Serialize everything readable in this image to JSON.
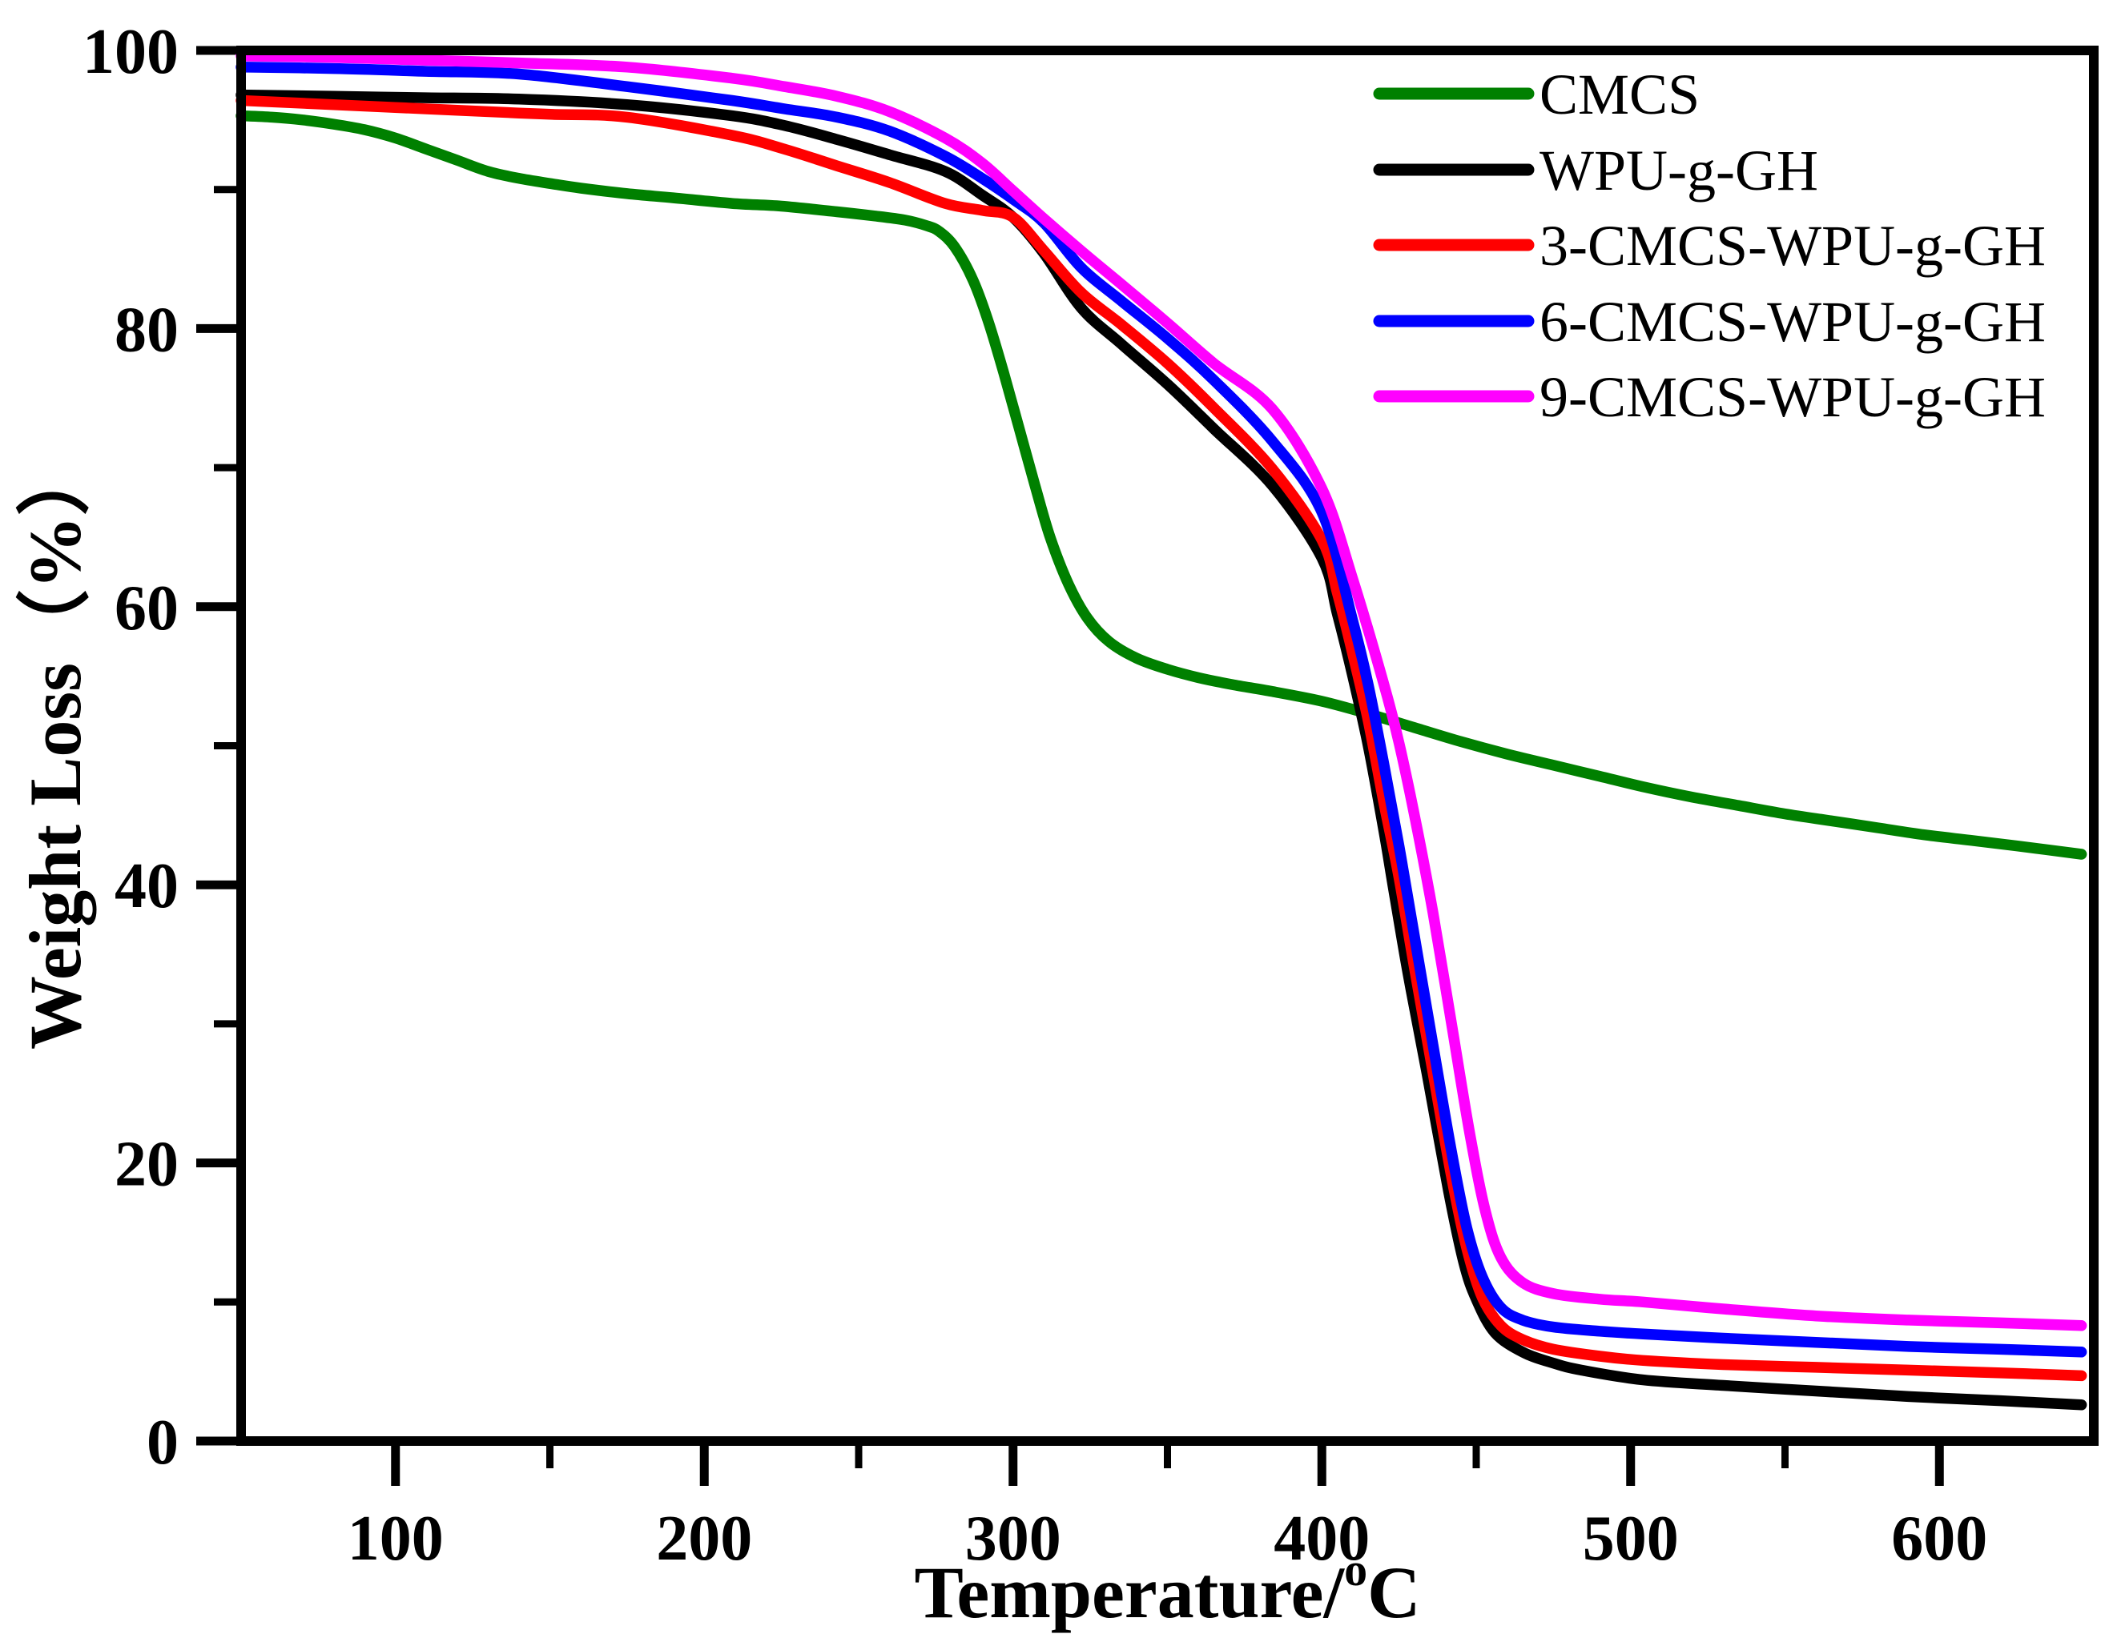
{
  "chart_data": {
    "type": "line",
    "title": "",
    "xlabel": "Temperature/°C",
    "xlabel_parts": {
      "main": "Temperature/",
      "sup": "o",
      "unit": "C"
    },
    "ylabel": "Weight Loss（%）",
    "xlim": [
      50,
      650
    ],
    "ylim": [
      0,
      100
    ],
    "x_major_ticks": [
      100,
      200,
      300,
      400,
      500,
      600
    ],
    "x_minor_ticks": [
      150,
      250,
      350,
      450,
      550
    ],
    "y_major_ticks": [
      0,
      20,
      40,
      60,
      80,
      100
    ],
    "y_minor_ticks": [
      10,
      30,
      50,
      70,
      90
    ],
    "grid": false,
    "legend_position": "top-right-inside",
    "frame_color": "#000000",
    "background_color": "#ffffff",
    "series": [
      {
        "name": "CMCS",
        "color": "#008000",
        "points": [
          [
            50,
            95.3
          ],
          [
            60,
            95.2
          ],
          [
            70,
            95.0
          ],
          [
            80,
            94.7
          ],
          [
            90,
            94.3
          ],
          [
            100,
            93.7
          ],
          [
            110,
            92.9
          ],
          [
            120,
            92.1
          ],
          [
            130,
            91.3
          ],
          [
            140,
            90.8
          ],
          [
            151,
            90.4
          ],
          [
            160,
            90.1
          ],
          [
            175,
            89.7
          ],
          [
            190,
            89.4
          ],
          [
            209,
            89.0
          ],
          [
            225,
            88.8
          ],
          [
            243,
            88.4
          ],
          [
            255,
            88.1
          ],
          [
            265,
            87.8
          ],
          [
            272,
            87.4
          ],
          [
            276,
            87.0
          ],
          [
            281,
            85.9
          ],
          [
            287,
            83.5
          ],
          [
            292,
            80.5
          ],
          [
            297,
            76.8
          ],
          [
            302,
            72.8
          ],
          [
            307,
            68.8
          ],
          [
            312,
            65.0
          ],
          [
            318,
            61.6
          ],
          [
            324,
            59.2
          ],
          [
            331,
            57.5
          ],
          [
            340,
            56.3
          ],
          [
            350,
            55.5
          ],
          [
            360,
            54.9
          ],
          [
            371,
            54.4
          ],
          [
            384,
            53.9
          ],
          [
            400,
            53.2
          ],
          [
            415,
            52.3
          ],
          [
            430,
            51.3
          ],
          [
            445,
            50.3
          ],
          [
            460,
            49.4
          ],
          [
            475,
            48.6
          ],
          [
            490,
            47.8
          ],
          [
            505,
            47.0
          ],
          [
            520,
            46.3
          ],
          [
            535,
            45.7
          ],
          [
            550,
            45.1
          ],
          [
            565,
            44.6
          ],
          [
            580,
            44.1
          ],
          [
            595,
            43.6
          ],
          [
            610,
            43.2
          ],
          [
            625,
            42.8
          ],
          [
            646,
            42.2
          ]
        ]
      },
      {
        "name": "WPU-g-GH",
        "color": "#000000",
        "points": [
          [
            50,
            96.8
          ],
          [
            80,
            96.7
          ],
          [
            110,
            96.6
          ],
          [
            140,
            96.5
          ],
          [
            175,
            96.1
          ],
          [
            209,
            95.3
          ],
          [
            226,
            94.6
          ],
          [
            243,
            93.6
          ],
          [
            260,
            92.5
          ],
          [
            278,
            91.3
          ],
          [
            290,
            89.6
          ],
          [
            300,
            88.0
          ],
          [
            310,
            85.4
          ],
          [
            322,
            81.5
          ],
          [
            335,
            78.9
          ],
          [
            350,
            76.0
          ],
          [
            365,
            72.8
          ],
          [
            384,
            68.7
          ],
          [
            400,
            63.5
          ],
          [
            405,
            59.5
          ],
          [
            410,
            55.0
          ],
          [
            415,
            50.0
          ],
          [
            420,
            44.0
          ],
          [
            423,
            40.0
          ],
          [
            428,
            33.5
          ],
          [
            434,
            26.5
          ],
          [
            441,
            18.0
          ],
          [
            446,
            12.8
          ],
          [
            450,
            10.2
          ],
          [
            456,
            7.8
          ],
          [
            465,
            6.4
          ],
          [
            475,
            5.6
          ],
          [
            484,
            5.1
          ],
          [
            504,
            4.4
          ],
          [
            530,
            4.0
          ],
          [
            560,
            3.6
          ],
          [
            590,
            3.2
          ],
          [
            620,
            2.9
          ],
          [
            646,
            2.6
          ]
        ]
      },
      {
        "name": "3-CMCS-WPU-g-GH",
        "color": "#ff0000",
        "points": [
          [
            50,
            96.4
          ],
          [
            80,
            96.1
          ],
          [
            110,
            95.8
          ],
          [
            140,
            95.5
          ],
          [
            151,
            95.4
          ],
          [
            175,
            95.2
          ],
          [
            209,
            93.9
          ],
          [
            226,
            92.9
          ],
          [
            243,
            91.7
          ],
          [
            260,
            90.5
          ],
          [
            278,
            89.0
          ],
          [
            290,
            88.5
          ],
          [
            300,
            88.0
          ],
          [
            310,
            85.6
          ],
          [
            322,
            82.6
          ],
          [
            335,
            80.3
          ],
          [
            350,
            77.5
          ],
          [
            365,
            74.3
          ],
          [
            384,
            69.9
          ],
          [
            400,
            64.8
          ],
          [
            405,
            61.0
          ],
          [
            410,
            56.6
          ],
          [
            415,
            51.8
          ],
          [
            420,
            46.0
          ],
          [
            425,
            40.5
          ],
          [
            430,
            34.0
          ],
          [
            436,
            26.5
          ],
          [
            442,
            19.0
          ],
          [
            447,
            13.8
          ],
          [
            452,
            10.3
          ],
          [
            458,
            8.3
          ],
          [
            465,
            7.3
          ],
          [
            475,
            6.6
          ],
          [
            490,
            6.1
          ],
          [
            504,
            5.8
          ],
          [
            530,
            5.5
          ],
          [
            560,
            5.3
          ],
          [
            590,
            5.1
          ],
          [
            620,
            4.9
          ],
          [
            646,
            4.7
          ]
        ]
      },
      {
        "name": "6-CMCS-WPU-g-GH",
        "color": "#0000ff",
        "points": [
          [
            50,
            98.8
          ],
          [
            80,
            98.7
          ],
          [
            110,
            98.5
          ],
          [
            140,
            98.3
          ],
          [
            175,
            97.4
          ],
          [
            209,
            96.4
          ],
          [
            226,
            95.8
          ],
          [
            243,
            95.2
          ],
          [
            260,
            94.2
          ],
          [
            278,
            92.4
          ],
          [
            290,
            90.8
          ],
          [
            300,
            89.3
          ],
          [
            310,
            87.6
          ],
          [
            322,
            84.4
          ],
          [
            335,
            82.0
          ],
          [
            350,
            79.3
          ],
          [
            365,
            76.3
          ],
          [
            384,
            71.9
          ],
          [
            400,
            66.8
          ],
          [
            410,
            59.0
          ],
          [
            415,
            54.4
          ],
          [
            420,
            48.8
          ],
          [
            425,
            42.8
          ],
          [
            430,
            36.3
          ],
          [
            436,
            28.5
          ],
          [
            442,
            20.8
          ],
          [
            447,
            15.3
          ],
          [
            452,
            11.8
          ],
          [
            458,
            9.6
          ],
          [
            465,
            8.7
          ],
          [
            475,
            8.2
          ],
          [
            490,
            7.9
          ],
          [
            504,
            7.7
          ],
          [
            530,
            7.4
          ],
          [
            560,
            7.1
          ],
          [
            590,
            6.8
          ],
          [
            620,
            6.6
          ],
          [
            646,
            6.4
          ]
        ]
      },
      {
        "name": "9-CMCS-WPU-g-GH",
        "color": "#ff00ff",
        "points": [
          [
            50,
            99.6
          ],
          [
            80,
            99.5
          ],
          [
            110,
            99.3
          ],
          [
            140,
            99.1
          ],
          [
            175,
            98.8
          ],
          [
            209,
            98.0
          ],
          [
            226,
            97.4
          ],
          [
            243,
            96.7
          ],
          [
            260,
            95.6
          ],
          [
            278,
            93.7
          ],
          [
            290,
            91.9
          ],
          [
            300,
            89.9
          ],
          [
            310,
            87.9
          ],
          [
            322,
            85.6
          ],
          [
            335,
            83.2
          ],
          [
            350,
            80.4
          ],
          [
            365,
            77.5
          ],
          [
            384,
            74.2
          ],
          [
            400,
            68.5
          ],
          [
            410,
            62.0
          ],
          [
            420,
            54.5
          ],
          [
            425,
            50.2
          ],
          [
            430,
            45.0
          ],
          [
            436,
            38.0
          ],
          [
            442,
            30.0
          ],
          [
            448,
            22.0
          ],
          [
            453,
            16.5
          ],
          [
            458,
            13.2
          ],
          [
            465,
            11.4
          ],
          [
            475,
            10.6
          ],
          [
            490,
            10.2
          ],
          [
            504,
            10.0
          ],
          [
            530,
            9.5
          ],
          [
            560,
            9.0
          ],
          [
            590,
            8.7
          ],
          [
            620,
            8.5
          ],
          [
            646,
            8.3
          ]
        ]
      }
    ]
  }
}
